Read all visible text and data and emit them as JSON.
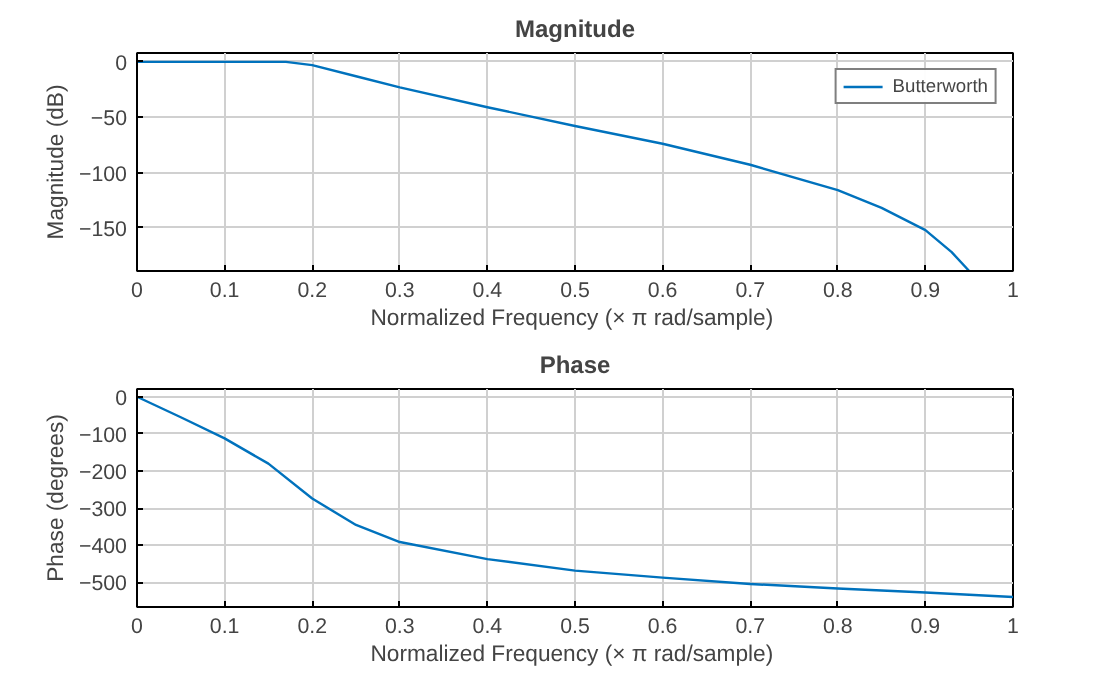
{
  "chart_data": [
    {
      "type": "line",
      "title": "Magnitude",
      "xlabel": "Normalized Frequency  (× π rad/sample)",
      "ylabel": "Magnitude (dB)",
      "xlim": [
        0,
        1
      ],
      "ylim": [
        -189,
        8
      ],
      "xticks": [
        0,
        0.1,
        0.2,
        0.3,
        0.4,
        0.5,
        0.6,
        0.7,
        0.8,
        0.9,
        1
      ],
      "yticks": [
        0,
        -50,
        -100,
        -150
      ],
      "grid": true,
      "legend": "top right",
      "line_style": "solid",
      "series": [
        {
          "name": "Butterworth",
          "color": "#0072bd",
          "x": [
            0,
            0.05,
            0.1,
            0.15,
            0.17,
            0.2,
            0.25,
            0.3,
            0.4,
            0.5,
            0.6,
            0.7,
            0.8,
            0.85,
            0.9,
            0.93,
            0.95
          ],
          "values": [
            0,
            0,
            0,
            0,
            0,
            -3,
            -13,
            -23,
            -41,
            -58,
            -74,
            -93,
            -116,
            -132,
            -152,
            -172,
            -189
          ]
        }
      ]
    },
    {
      "type": "line",
      "title": "Phase",
      "xlabel": "Normalized Frequency  (× π rad/sample)",
      "ylabel": "Phase (degrees)",
      "xlim": [
        0,
        1
      ],
      "ylim": [
        -566,
        21
      ],
      "xticks": [
        0,
        0.1,
        0.2,
        0.3,
        0.4,
        0.5,
        0.6,
        0.7,
        0.8,
        0.9,
        1
      ],
      "yticks": [
        0,
        -100,
        -200,
        -300,
        -400,
        -500
      ],
      "grid": true,
      "legend": false,
      "line_style": "solid",
      "series": [
        {
          "color": "#0072bd",
          "x": [
            0,
            0.05,
            0.1,
            0.15,
            0.2,
            0.25,
            0.3,
            0.4,
            0.5,
            0.6,
            0.7,
            0.8,
            0.9,
            1.0
          ],
          "values": [
            0,
            -55,
            -112,
            -180,
            -274,
            -345,
            -391,
            -437,
            -468,
            -487,
            -504,
            -516,
            -527,
            -539
          ]
        }
      ]
    }
  ]
}
